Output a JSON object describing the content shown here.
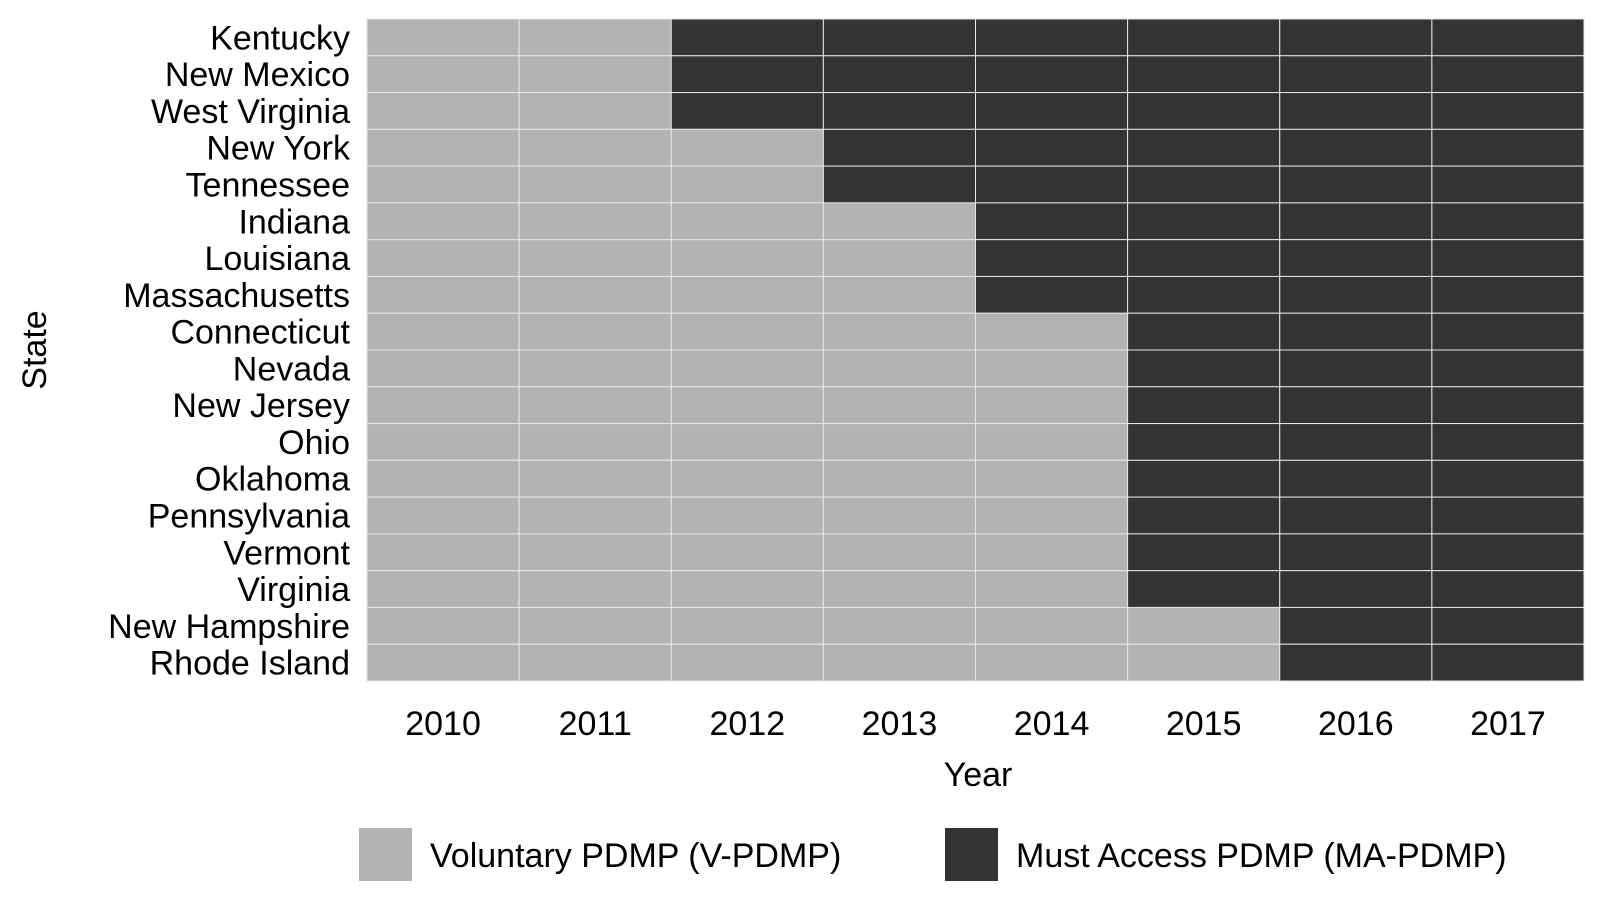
{
  "chart_data": {
    "type": "heatmap",
    "title": "",
    "xlabel": "Year",
    "ylabel": "State",
    "x": [
      "2010",
      "2011",
      "2012",
      "2013",
      "2014",
      "2015",
      "2016",
      "2017"
    ],
    "y": [
      "Kentucky",
      "New Mexico",
      "West Virginia",
      "New York",
      "Tennessee",
      "Indiana",
      "Louisiana",
      "Massachusetts",
      "Connecticut",
      "Nevada",
      "New Jersey",
      "Ohio",
      "Oklahoma",
      "Pennsylvania",
      "Vermont",
      "Virginia",
      "New Hampshire",
      "Rhode Island"
    ],
    "first_must_access_year": {
      "Kentucky": "2012",
      "New Mexico": "2012",
      "West Virginia": "2012",
      "New York": "2013",
      "Tennessee": "2013",
      "Indiana": "2014",
      "Louisiana": "2014",
      "Massachusetts": "2014",
      "Connecticut": "2015",
      "Nevada": "2015",
      "New Jersey": "2015",
      "Ohio": "2015",
      "Oklahoma": "2015",
      "Pennsylvania": "2015",
      "Vermont": "2015",
      "Virginia": "2015",
      "New Hampshire": "2016",
      "Rhode Island": "2016"
    },
    "categories": [
      {
        "key": "v",
        "name": "Voluntary PDMP (V-PDMP)",
        "color": "#b3b3b3"
      },
      {
        "key": "ma",
        "name": "Must Access PDMP (MA-PDMP)",
        "color": "#333333"
      }
    ],
    "grid_line_color": "#e6e6e6",
    "legend_position": "bottom"
  }
}
